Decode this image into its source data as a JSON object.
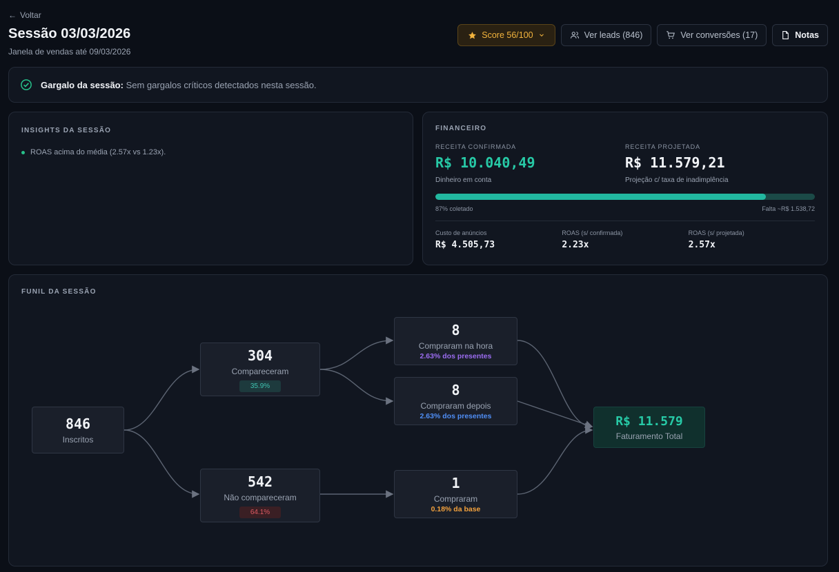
{
  "header": {
    "back_label": "Voltar",
    "title": "Sessão 03/03/2026",
    "subtitle": "Janela de vendas até 09/03/2026"
  },
  "actions": {
    "score_label": "Score 56/100",
    "leads_label": "Ver leads (846)",
    "conversions_label": "Ver conversões (17)",
    "notes_label": "Notas"
  },
  "bottleneck": {
    "label": "Gargalo da sessão:",
    "text": "Sem gargalos críticos detectados nesta sessão."
  },
  "insights": {
    "title": "INSIGHTS DA SESSÃO",
    "items": [
      "ROAS acima do média (2.57x vs 1.23x)."
    ]
  },
  "financeiro": {
    "title": "FINANCEIRO",
    "confirmed_label": "RECEITA CONFIRMADA",
    "confirmed_value": "R$ 10.040,49",
    "confirmed_note": "Dinheiro em conta",
    "projected_label": "RECEITA PROJETADA",
    "projected_value": "R$ 11.579,21",
    "projected_note": "Projeção c/ taxa de inadimplência",
    "collected_fraction": 0.87,
    "collected_label": "87% coletado",
    "missing_label": "Falta ~R$ 1.538,72",
    "ad_cost_label": "Custo de anúncios",
    "ad_cost_value": "R$ 4.505,73",
    "roas_confirmed_label": "ROAS (s/ confirmada)",
    "roas_confirmed_value": "2.23x",
    "roas_projected_label": "ROAS (s/ projetada)",
    "roas_projected_value": "2.57x"
  },
  "funnel": {
    "title": "FUNIL DA SESSÃO",
    "inscritos": {
      "num": "846",
      "label": "Inscritos"
    },
    "compareceram": {
      "num": "304",
      "label": "Compareceram",
      "badge": "35.9%"
    },
    "nao_compareceram": {
      "num": "542",
      "label": "Não compareceram",
      "badge": "64.1%"
    },
    "compraram_hora": {
      "num": "8",
      "label": "Compraram na hora",
      "pct": "2.63% dos presentes"
    },
    "compraram_depois": {
      "num": "8",
      "label": "Compraram depois",
      "pct": "2.63% dos presentes"
    },
    "compraram": {
      "num": "1",
      "label": "Compraram",
      "pct": "0.18% da base"
    },
    "total": {
      "num": "R$ 11.579",
      "label": "Faturamento Total"
    }
  },
  "colors": {
    "teal": "#27c9a6",
    "score_amber": "#f2b33d",
    "purple": "#9b6cf0",
    "blue": "#4f8ef5",
    "orange": "#f2a13d",
    "red": "#e05a63"
  }
}
